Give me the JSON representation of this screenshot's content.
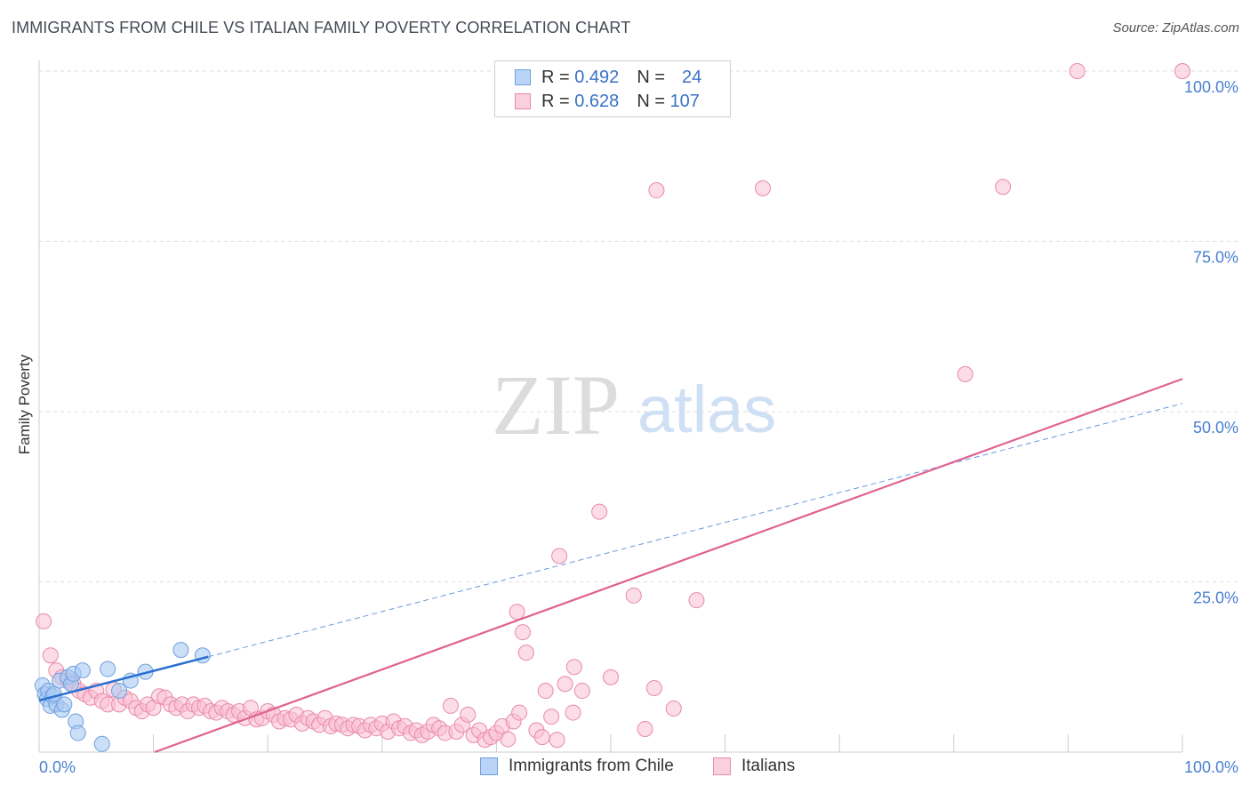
{
  "title": "IMMIGRANTS FROM CHILE VS ITALIAN FAMILY POVERTY CORRELATION CHART",
  "source": "Source: ZipAtlas.com",
  "watermark": {
    "zip": "ZIP",
    "atlas": "atlas"
  },
  "legend": {
    "rows": [
      {
        "r_label": "R =",
        "r_value": "0.492",
        "n_label": "N =",
        "n_value": "24"
      },
      {
        "r_label": "R =",
        "r_value": "0.628",
        "n_label": "N =",
        "n_value": "107"
      }
    ]
  },
  "bottom_legend": {
    "series1": "Immigrants from Chile",
    "series2": "Italians"
  },
  "colors": {
    "chile_fill": "#a9c9f3",
    "chile_stroke": "#6f9fdc",
    "chile_line": "#2a6fd1",
    "italian_fill": "#f9c0d2",
    "italian_stroke": "#e88aa8",
    "italian_line": "#e06190"
  },
  "chart_data": {
    "type": "scatter",
    "title": "IMMIGRANTS FROM CHILE VS ITALIAN FAMILY POVERTY CORRELATION CHART",
    "xlabel": "",
    "ylabel": "Family Poverty",
    "xlim": [
      0,
      100
    ],
    "ylim": [
      0,
      100
    ],
    "x_tick_labels": [
      "0.0%",
      "100.0%"
    ],
    "y_ticks": [
      25,
      50,
      75,
      100
    ],
    "y_tick_labels": [
      "25.0%",
      "50.0%",
      "75.0%",
      "100.0%"
    ],
    "series": [
      {
        "name": "Immigrants from Chile",
        "r": 0.492,
        "n": 24,
        "points": [
          [
            0.3,
            9.8
          ],
          [
            0.5,
            8.5
          ],
          [
            0.7,
            7.8
          ],
          [
            0.8,
            9.0
          ],
          [
            1.0,
            6.8
          ],
          [
            1.2,
            8.2
          ],
          [
            1.5,
            7.0
          ],
          [
            1.8,
            10.5
          ],
          [
            2.0,
            6.2
          ],
          [
            2.2,
            7.0
          ],
          [
            2.5,
            11.0
          ],
          [
            2.8,
            10.0
          ],
          [
            3.0,
            11.5
          ],
          [
            3.2,
            4.5
          ],
          [
            3.4,
            2.8
          ],
          [
            3.8,
            12.0
          ],
          [
            5.5,
            1.2
          ],
          [
            6.0,
            12.2
          ],
          [
            7.0,
            9.0
          ],
          [
            8.0,
            10.5
          ],
          [
            9.3,
            11.8
          ],
          [
            12.4,
            15.0
          ],
          [
            14.3,
            14.2
          ],
          [
            1.3,
            8.5
          ]
        ],
        "trend": {
          "x": [
            0,
            14.8
          ],
          "y": [
            7.6,
            14.0
          ]
        },
        "trend_extended": {
          "x": [
            14.8,
            100
          ],
          "y": [
            14.0,
            51.2
          ]
        }
      },
      {
        "name": "Italians",
        "r": 0.628,
        "n": 107,
        "points": [
          [
            0.4,
            19.2
          ],
          [
            1.0,
            14.2
          ],
          [
            1.5,
            12.0
          ],
          [
            2.0,
            11.0
          ],
          [
            2.5,
            10.5
          ],
          [
            3.0,
            10.0
          ],
          [
            3.5,
            9.0
          ],
          [
            4.0,
            8.5
          ],
          [
            4.5,
            8.0
          ],
          [
            5.0,
            9.0
          ],
          [
            5.5,
            7.5
          ],
          [
            6.0,
            7.0
          ],
          [
            6.5,
            9.2
          ],
          [
            7.0,
            7.0
          ],
          [
            7.5,
            8.0
          ],
          [
            8.0,
            7.5
          ],
          [
            8.5,
            6.5
          ],
          [
            9.0,
            6.0
          ],
          [
            9.5,
            7.0
          ],
          [
            10.0,
            6.5
          ],
          [
            10.5,
            8.2
          ],
          [
            11.0,
            8.0
          ],
          [
            11.5,
            7.0
          ],
          [
            12.0,
            6.5
          ],
          [
            12.5,
            7.0
          ],
          [
            13.0,
            6.0
          ],
          [
            13.5,
            7.0
          ],
          [
            14.0,
            6.5
          ],
          [
            14.5,
            6.8
          ],
          [
            15.0,
            6.0
          ],
          [
            15.5,
            5.8
          ],
          [
            16.0,
            6.5
          ],
          [
            16.5,
            6.0
          ],
          [
            17.0,
            5.5
          ],
          [
            17.5,
            6.0
          ],
          [
            18.0,
            5.0
          ],
          [
            18.5,
            6.5
          ],
          [
            19.0,
            4.8
          ],
          [
            19.5,
            5.0
          ],
          [
            20.0,
            6.0
          ],
          [
            20.5,
            5.5
          ],
          [
            21.0,
            4.5
          ],
          [
            21.5,
            5.0
          ],
          [
            22.0,
            4.8
          ],
          [
            22.5,
            5.5
          ],
          [
            23.0,
            4.2
          ],
          [
            23.5,
            5.0
          ],
          [
            24.0,
            4.5
          ],
          [
            24.5,
            4.0
          ],
          [
            25.0,
            5.0
          ],
          [
            25.5,
            3.8
          ],
          [
            26.0,
            4.2
          ],
          [
            26.5,
            4.0
          ],
          [
            27.0,
            3.5
          ],
          [
            27.5,
            4.0
          ],
          [
            28.0,
            3.8
          ],
          [
            28.5,
            3.2
          ],
          [
            29.0,
            4.0
          ],
          [
            29.5,
            3.5
          ],
          [
            30.0,
            4.2
          ],
          [
            30.5,
            3.0
          ],
          [
            31.0,
            4.5
          ],
          [
            31.5,
            3.5
          ],
          [
            32.0,
            3.8
          ],
          [
            32.5,
            2.8
          ],
          [
            33.0,
            3.2
          ],
          [
            33.5,
            2.5
          ],
          [
            34.0,
            3.0
          ],
          [
            34.5,
            4.0
          ],
          [
            35.0,
            3.5
          ],
          [
            35.5,
            2.8
          ],
          [
            36.0,
            6.8
          ],
          [
            36.5,
            3.0
          ],
          [
            37.0,
            4.0
          ],
          [
            37.5,
            5.5
          ],
          [
            38.0,
            2.5
          ],
          [
            38.5,
            3.2
          ],
          [
            39.0,
            1.8
          ],
          [
            39.5,
            2.2
          ],
          [
            40.0,
            2.8
          ],
          [
            40.5,
            3.8
          ],
          [
            41.0,
            1.9
          ],
          [
            41.5,
            4.5
          ],
          [
            42.0,
            5.8
          ],
          [
            41.8,
            20.6
          ],
          [
            42.3,
            17.6
          ],
          [
            42.6,
            14.6
          ],
          [
            43.5,
            3.2
          ],
          [
            44.0,
            2.2
          ],
          [
            44.3,
            9.0
          ],
          [
            44.8,
            5.2
          ],
          [
            45.3,
            1.8
          ],
          [
            45.5,
            28.8
          ],
          [
            46.0,
            10.0
          ],
          [
            46.7,
            5.8
          ],
          [
            46.8,
            12.5
          ],
          [
            47.5,
            9.0
          ],
          [
            49.0,
            35.3
          ],
          [
            50.0,
            11.0
          ],
          [
            52.0,
            23.0
          ],
          [
            53.0,
            3.4
          ],
          [
            53.8,
            9.4
          ],
          [
            54.0,
            82.5
          ],
          [
            55.5,
            6.4
          ],
          [
            57.5,
            22.3
          ],
          [
            63.3,
            82.8
          ],
          [
            81.0,
            55.5
          ],
          [
            84.3,
            83.0
          ],
          [
            90.8,
            100.0
          ],
          [
            100.0,
            100.0
          ]
        ],
        "trend": {
          "x": [
            10.1,
            100
          ],
          "y": [
            0.0,
            54.8
          ]
        }
      }
    ]
  }
}
